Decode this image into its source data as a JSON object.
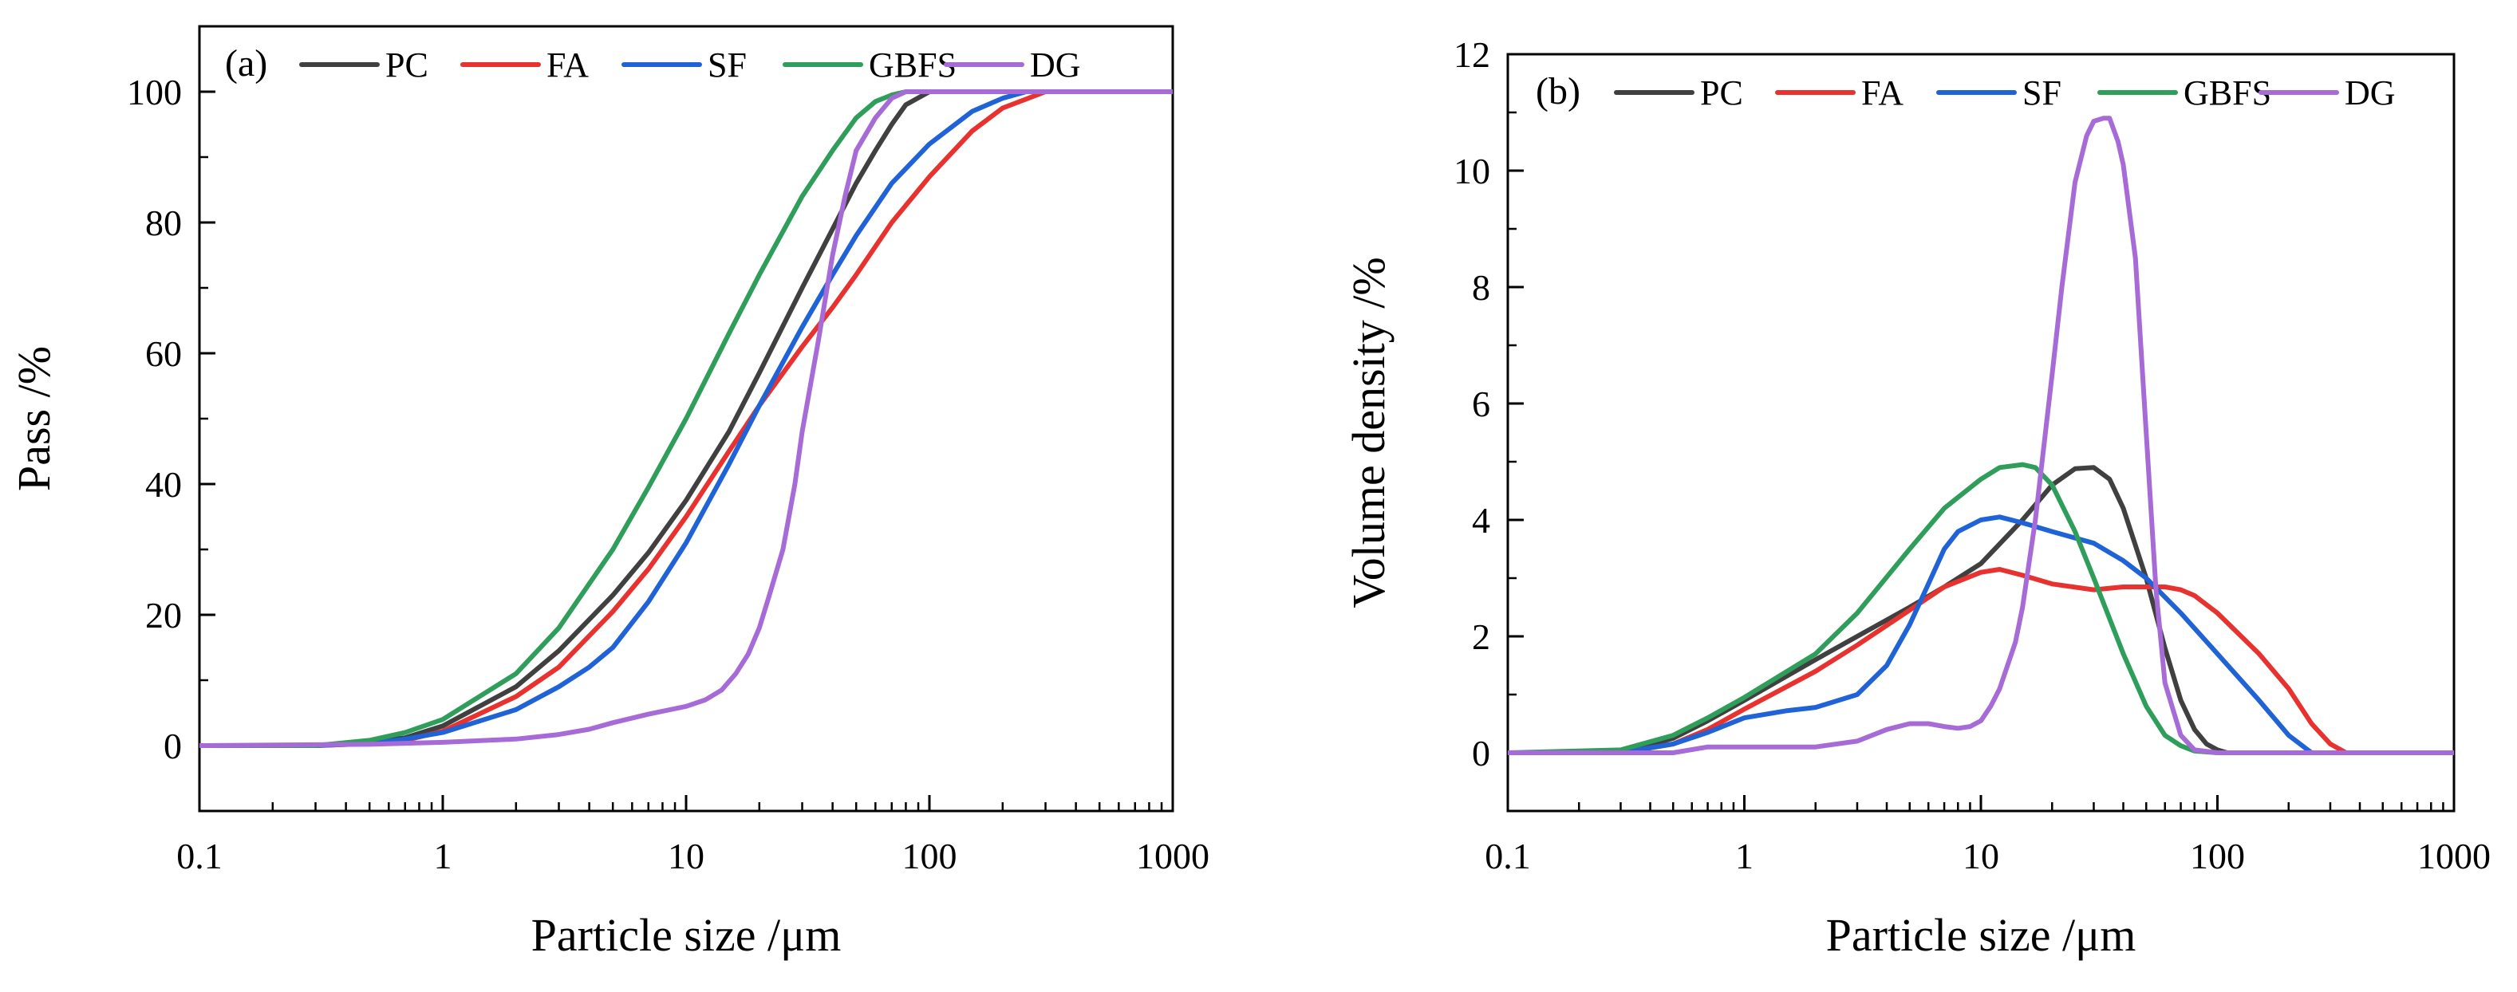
{
  "colors": {
    "PC": "#404040",
    "FA": "#e8322f",
    "SF": "#1f63d6",
    "GBFS": "#2f9e5a",
    "DG": "#a66bd6"
  },
  "chart_data": [
    {
      "type": "line",
      "panel": "(a)",
      "xlabel": "Particle size /μm",
      "ylabel": "Pass /%",
      "xscale": "log",
      "xlim": [
        0.1,
        1000
      ],
      "ylim": [
        -10,
        110
      ],
      "x_ticks": [
        0.1,
        1,
        10,
        100,
        1000
      ],
      "x_tick_labels": [
        "0.1",
        "1",
        "10",
        "100",
        "1000"
      ],
      "y_ticks": [
        0,
        20,
        40,
        60,
        80,
        100
      ],
      "y_tick_labels": [
        "0",
        "20",
        "40",
        "60",
        "80",
        "100"
      ],
      "legend": [
        "PC",
        "FA",
        "SF",
        "GBFS",
        "DG"
      ],
      "series": [
        {
          "name": "PC",
          "x": [
            0.1,
            0.3,
            0.5,
            0.7,
            1,
            2,
            3,
            5,
            7,
            10,
            15,
            20,
            30,
            40,
            50,
            60,
            70,
            80,
            100,
            1000
          ],
          "y": [
            0,
            0,
            0.5,
            1.2,
            3,
            9,
            14.5,
            23,
            29.5,
            37.5,
            48,
            57,
            70,
            79,
            86,
            91,
            95,
            98,
            100,
            100
          ]
        },
        {
          "name": "FA",
          "x": [
            0.1,
            0.3,
            0.5,
            0.7,
            1,
            2,
            3,
            5,
            7,
            10,
            15,
            20,
            30,
            40,
            50,
            70,
            100,
            150,
            200,
            300,
            1000
          ],
          "y": [
            0,
            0,
            0.3,
            0.8,
            2.2,
            7.5,
            12,
            20.5,
            27,
            35,
            45,
            52,
            61,
            67,
            72,
            80,
            87,
            94,
            97.5,
            100,
            100
          ]
        },
        {
          "name": "SF",
          "x": [
            0.1,
            0.3,
            0.5,
            0.7,
            1,
            2,
            3,
            4,
            5,
            7,
            10,
            15,
            20,
            30,
            40,
            50,
            70,
            100,
            150,
            200,
            250,
            1000
          ],
          "y": [
            0,
            0,
            0.3,
            1,
            2,
            5.5,
            9,
            12,
            15,
            22,
            31,
            43,
            52,
            64,
            72,
            78,
            86,
            92,
            97,
            99,
            100,
            100
          ]
        },
        {
          "name": "GBFS",
          "x": [
            0.1,
            0.3,
            0.5,
            0.7,
            1,
            2,
            3,
            5,
            7,
            10,
            15,
            20,
            30,
            40,
            50,
            60,
            70,
            80,
            100,
            1000
          ],
          "y": [
            0,
            0,
            0.8,
            2,
            4,
            11,
            18,
            30,
            39.5,
            50,
            63,
            72,
            84,
            91,
            96,
            98.5,
            99.5,
            100,
            100,
            100
          ]
        },
        {
          "name": "DG",
          "x": [
            0.1,
            0.5,
            1,
            2,
            3,
            4,
            5,
            7,
            10,
            12,
            14,
            16,
            18,
            20,
            22,
            25,
            28,
            30,
            35,
            40,
            45,
            50,
            60,
            70,
            80,
            90,
            100,
            1000
          ],
          "y": [
            0,
            0.2,
            0.5,
            1,
            1.7,
            2.5,
            3.5,
            4.8,
            6,
            7,
            8.5,
            11,
            14,
            18,
            23,
            30,
            40,
            48,
            62,
            75,
            84,
            91,
            96,
            99,
            100,
            100,
            100,
            100
          ]
        }
      ]
    },
    {
      "type": "line",
      "panel": "(b)",
      "xlabel": "Particle size /μm",
      "ylabel": "Volume density /%",
      "xscale": "log",
      "xlim": [
        0.1,
        1000
      ],
      "ylim": [
        -1,
        12
      ],
      "x_ticks": [
        0.1,
        1,
        10,
        100,
        1000
      ],
      "x_tick_labels": [
        "0.1",
        "1",
        "10",
        "100",
        "1000"
      ],
      "y_ticks": [
        0,
        2,
        4,
        6,
        8,
        10,
        12
      ],
      "y_tick_labels": [
        "0",
        "2",
        "4",
        "6",
        "8",
        "10",
        "12"
      ],
      "legend": [
        "PC",
        "FA",
        "SF",
        "GBFS",
        "DG"
      ],
      "series": [
        {
          "name": "PC",
          "x": [
            0.1,
            0.3,
            0.5,
            0.7,
            1,
            2,
            3,
            5,
            7,
            10,
            15,
            20,
            25,
            30,
            35,
            40,
            50,
            60,
            70,
            80,
            90,
            100,
            110,
            1000
          ],
          "y": [
            0,
            0,
            0.25,
            0.55,
            0.9,
            1.6,
            2.0,
            2.5,
            2.85,
            3.25,
            4.0,
            4.6,
            4.88,
            4.9,
            4.7,
            4.2,
            3.0,
            1.8,
            0.9,
            0.4,
            0.15,
            0.05,
            0,
            0
          ]
        },
        {
          "name": "FA",
          "x": [
            0.1,
            0.3,
            0.5,
            0.7,
            1,
            2,
            3,
            5,
            7,
            10,
            12,
            15,
            20,
            30,
            40,
            50,
            60,
            70,
            80,
            100,
            150,
            200,
            250,
            300,
            350,
            1000
          ],
          "y": [
            0,
            0,
            0.15,
            0.4,
            0.75,
            1.4,
            1.85,
            2.45,
            2.85,
            3.1,
            3.15,
            3.05,
            2.9,
            2.8,
            2.85,
            2.85,
            2.85,
            2.8,
            2.7,
            2.4,
            1.7,
            1.1,
            0.5,
            0.15,
            0,
            0
          ]
        },
        {
          "name": "SF",
          "x": [
            0.1,
            0.3,
            0.5,
            0.7,
            1,
            1.5,
            2,
            3,
            4,
            5,
            6,
            7,
            8,
            10,
            12,
            15,
            20,
            30,
            40,
            50,
            70,
            100,
            150,
            200,
            250,
            1000
          ],
          "y": [
            0,
            0,
            0.15,
            0.35,
            0.6,
            0.72,
            0.78,
            1.0,
            1.5,
            2.2,
            2.9,
            3.5,
            3.8,
            4.0,
            4.05,
            3.95,
            3.8,
            3.6,
            3.3,
            3.0,
            2.4,
            1.7,
            0.9,
            0.3,
            0,
            0
          ]
        },
        {
          "name": "GBFS",
          "x": [
            0.1,
            0.3,
            0.5,
            0.7,
            1,
            2,
            3,
            5,
            7,
            10,
            12,
            15,
            17,
            20,
            25,
            30,
            40,
            50,
            60,
            70,
            80,
            100,
            1000
          ],
          "y": [
            0,
            0.05,
            0.3,
            0.6,
            0.95,
            1.7,
            2.4,
            3.5,
            4.2,
            4.7,
            4.9,
            4.95,
            4.9,
            4.6,
            3.8,
            3.0,
            1.7,
            0.8,
            0.3,
            0.12,
            0.03,
            0,
            0
          ]
        },
        {
          "name": "DG",
          "x": [
            0.1,
            0.5,
            0.7,
            1,
            2,
            3,
            4,
            5,
            6,
            7,
            8,
            9,
            10,
            11,
            12,
            14,
            15,
            17,
            20,
            22,
            25,
            28,
            30,
            33,
            35,
            38,
            40,
            45,
            50,
            55,
            60,
            70,
            80,
            100,
            1000
          ],
          "y": [
            0,
            0,
            0.1,
            0.1,
            0.1,
            0.2,
            0.4,
            0.5,
            0.5,
            0.45,
            0.42,
            0.45,
            0.55,
            0.8,
            1.1,
            1.9,
            2.5,
            4.0,
            6.5,
            8.0,
            9.8,
            10.6,
            10.85,
            10.9,
            10.9,
            10.5,
            10.1,
            8.5,
            5.5,
            2.8,
            1.2,
            0.3,
            0.05,
            0,
            0
          ]
        }
      ]
    }
  ]
}
